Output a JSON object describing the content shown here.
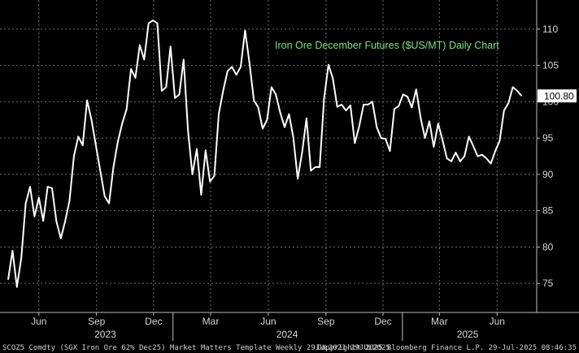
{
  "chart_data": {
    "type": "line",
    "title": "Iron Ore December Futures ($US/MT) Daily Chart",
    "last_value_label": "100.80",
    "ylim": [
      71,
      114
    ],
    "y_ticks": [
      75,
      80,
      85,
      90,
      95,
      100,
      105,
      110
    ],
    "grid": true,
    "x_tick_labels": [
      {
        "label": "Jun",
        "date": "2023-06-01"
      },
      {
        "label": "Sep",
        "date": "2023-09-01"
      },
      {
        "label": "Dec",
        "date": "2023-12-01"
      },
      {
        "label": "Mar",
        "date": "2024-03-01"
      },
      {
        "label": "Jun",
        "date": "2024-06-01"
      },
      {
        "label": "Sep",
        "date": "2024-09-01"
      },
      {
        "label": "Dec",
        "date": "2024-12-01"
      },
      {
        "label": "Mar",
        "date": "2025-03-01"
      },
      {
        "label": "Jun",
        "date": "2025-06-01"
      }
    ],
    "year_labels": [
      {
        "label": "2023",
        "date": "2023-09-15"
      },
      {
        "label": "2024",
        "date": "2024-07-01"
      },
      {
        "label": "2025",
        "date": "2025-04-15"
      }
    ],
    "year_dividers": [
      "2024-01-01",
      "2025-01-01"
    ],
    "x_range": [
      "2023-04-13",
      "2025-07-29"
    ],
    "series": [
      {
        "color": "#ffffff",
        "points": [
          [
            "2023-04-13",
            75.5
          ],
          [
            "2023-04-20",
            79.5
          ],
          [
            "2023-04-27",
            74.5
          ],
          [
            "2023-05-04",
            78.5
          ],
          [
            "2023-05-11",
            86.0
          ],
          [
            "2023-05-18",
            88.3
          ],
          [
            "2023-05-25",
            84.2
          ],
          [
            "2023-06-01",
            86.8
          ],
          [
            "2023-06-08",
            83.6
          ],
          [
            "2023-06-15",
            88.3
          ],
          [
            "2023-06-22",
            88.1
          ],
          [
            "2023-06-29",
            83.5
          ],
          [
            "2023-07-06",
            81.2
          ],
          [
            "2023-07-13",
            83.6
          ],
          [
            "2023-07-20",
            86.4
          ],
          [
            "2023-07-27",
            92.5
          ],
          [
            "2023-08-03",
            95.2
          ],
          [
            "2023-08-10",
            94.0
          ],
          [
            "2023-08-17",
            100.2
          ],
          [
            "2023-08-24",
            97.5
          ],
          [
            "2023-08-31",
            94.0
          ],
          [
            "2023-09-07",
            90.5
          ],
          [
            "2023-09-14",
            87.0
          ],
          [
            "2023-09-21",
            86.0
          ],
          [
            "2023-09-28",
            91.0
          ],
          [
            "2023-10-05",
            94.5
          ],
          [
            "2023-10-12",
            97.0
          ],
          [
            "2023-10-19",
            99.0
          ],
          [
            "2023-10-26",
            104.5
          ],
          [
            "2023-11-02",
            103.3
          ],
          [
            "2023-11-09",
            107.8
          ],
          [
            "2023-11-16",
            105.8
          ],
          [
            "2023-11-23",
            110.8
          ],
          [
            "2023-11-30",
            111.2
          ],
          [
            "2023-12-07",
            110.8
          ],
          [
            "2023-12-14",
            101.5
          ],
          [
            "2023-12-21",
            102.0
          ],
          [
            "2023-12-28",
            107.6
          ],
          [
            "2024-01-04",
            100.5
          ],
          [
            "2024-01-11",
            101.0
          ],
          [
            "2024-01-18",
            105.8
          ],
          [
            "2024-01-25",
            96.0
          ],
          [
            "2024-02-01",
            90.0
          ],
          [
            "2024-02-08",
            93.5
          ],
          [
            "2024-02-15",
            87.2
          ],
          [
            "2024-02-22",
            93.3
          ],
          [
            "2024-02-29",
            89.0
          ],
          [
            "2024-03-07",
            89.8
          ],
          [
            "2024-03-14",
            98.3
          ],
          [
            "2024-03-21",
            101.5
          ],
          [
            "2024-03-28",
            104.2
          ],
          [
            "2024-04-04",
            104.8
          ],
          [
            "2024-04-11",
            103.7
          ],
          [
            "2024-04-18",
            104.8
          ],
          [
            "2024-04-25",
            109.8
          ],
          [
            "2024-05-02",
            105.3
          ],
          [
            "2024-05-09",
            100.2
          ],
          [
            "2024-05-16",
            99.2
          ],
          [
            "2024-05-23",
            96.3
          ],
          [
            "2024-05-30",
            97.5
          ],
          [
            "2024-06-06",
            102.0
          ],
          [
            "2024-06-13",
            101.0
          ],
          [
            "2024-06-20",
            98.5
          ],
          [
            "2024-06-27",
            96.5
          ],
          [
            "2024-07-04",
            98.3
          ],
          [
            "2024-07-11",
            95.0
          ],
          [
            "2024-07-18",
            89.4
          ],
          [
            "2024-07-25",
            93.0
          ],
          [
            "2024-08-01",
            97.7
          ],
          [
            "2024-08-08",
            90.5
          ],
          [
            "2024-08-15",
            91.0
          ],
          [
            "2024-08-22",
            91.0
          ],
          [
            "2024-08-29",
            100.4
          ],
          [
            "2024-09-05",
            105.1
          ],
          [
            "2024-09-12",
            103.2
          ],
          [
            "2024-09-19",
            99.3
          ],
          [
            "2024-09-26",
            99.6
          ],
          [
            "2024-10-03",
            98.8
          ],
          [
            "2024-10-10",
            99.5
          ],
          [
            "2024-10-17",
            94.3
          ],
          [
            "2024-10-24",
            96.6
          ],
          [
            "2024-10-31",
            99.6
          ],
          [
            "2024-11-07",
            99.6
          ],
          [
            "2024-11-14",
            100.0
          ],
          [
            "2024-11-21",
            96.5
          ],
          [
            "2024-11-28",
            95.0
          ],
          [
            "2024-12-05",
            94.9
          ],
          [
            "2024-12-12",
            93.2
          ],
          [
            "2024-12-19",
            99.0
          ],
          [
            "2024-12-26",
            99.4
          ],
          [
            "2025-01-02",
            101.0
          ],
          [
            "2025-01-09",
            100.7
          ],
          [
            "2025-01-16",
            99.2
          ],
          [
            "2025-01-23",
            101.7
          ],
          [
            "2025-01-30",
            97.8
          ],
          [
            "2025-02-06",
            95.0
          ],
          [
            "2025-02-13",
            97.3
          ],
          [
            "2025-02-20",
            93.8
          ],
          [
            "2025-02-27",
            97.0
          ],
          [
            "2025-03-06",
            94.7
          ],
          [
            "2025-03-13",
            92.2
          ],
          [
            "2025-03-20",
            91.8
          ],
          [
            "2025-03-27",
            93.0
          ],
          [
            "2025-04-03",
            91.8
          ],
          [
            "2025-04-10",
            92.5
          ],
          [
            "2025-04-17",
            95.2
          ],
          [
            "2025-04-24",
            93.9
          ],
          [
            "2025-05-01",
            92.5
          ],
          [
            "2025-05-08",
            92.7
          ],
          [
            "2025-05-15",
            92.2
          ],
          [
            "2025-05-22",
            91.5
          ],
          [
            "2025-05-29",
            93.2
          ],
          [
            "2025-06-05",
            94.6
          ],
          [
            "2025-06-12",
            98.8
          ],
          [
            "2025-06-19",
            99.8
          ],
          [
            "2025-06-26",
            102.0
          ],
          [
            "2025-07-03",
            101.5
          ],
          [
            "2025-07-10",
            100.8
          ]
        ]
      }
    ]
  },
  "footer": {
    "left": "SCOZ5 Comdty (SGX Iron Ore 62% Dec25) Market Matters Template  Weekly 29JUL2021-29JUL2025",
    "right": "Copyright® 2025 Bloomberg Finance L.P.   29-Jul-2025 08:46:35"
  },
  "colors": {
    "background": "#000000",
    "line": "#ffffff",
    "grid": "#6b6b8a",
    "title": "#7ee07e",
    "last_value_box": "#ffffff"
  }
}
